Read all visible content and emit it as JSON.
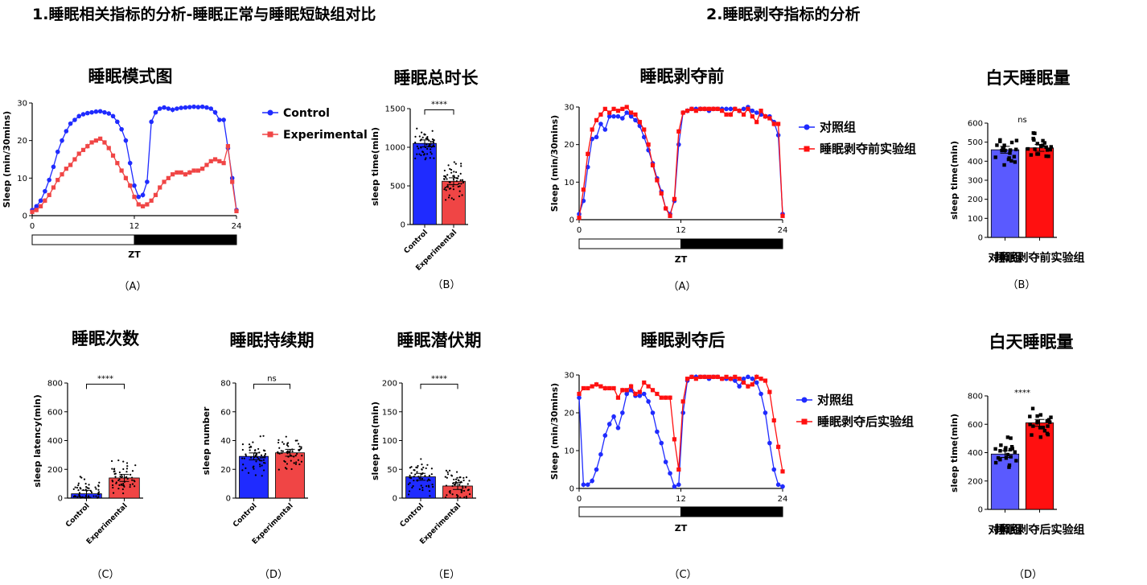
{
  "sections": {
    "left": "1.睡眠相关指标的分析-睡眠正常与睡眠短缺组对比",
    "right": "2.睡眠剥夺指标的分析"
  },
  "colors": {
    "blue": "#1f2bff",
    "red_light": "#f04545",
    "red": "#ff1010",
    "blue_light": "#5a5aff",
    "black": "#000000"
  },
  "chart_data": [
    {
      "id": "A1",
      "type": "line",
      "title": "睡眠模式图",
      "panel_label": "（A）",
      "ylabel": "Sleep (min/30mins)",
      "xlabel": "ZT",
      "xlim": [
        0,
        24
      ],
      "ylim": [
        0,
        30
      ],
      "xticks": [
        0,
        12,
        24
      ],
      "yticks": [
        0,
        10,
        20,
        30
      ],
      "light_dark_bar": true,
      "series": [
        {
          "name": "Control",
          "color": "#1f2bff",
          "marker": "circle",
          "values": [
            1.5,
            2.5,
            4,
            6.5,
            9.5,
            13,
            17,
            20,
            22.5,
            24.5,
            25.5,
            26.5,
            27,
            27.3,
            27.5,
            27.7,
            27.8,
            27.5,
            27.2,
            26.5,
            25,
            23,
            20,
            14,
            8,
            5,
            5.5,
            9,
            25,
            27.5,
            28.5,
            28.8,
            28.5,
            28.2,
            28.5,
            28.7,
            28.8,
            28.9,
            29,
            28.9,
            29,
            28.8,
            28.5,
            27.5,
            25.5,
            25.5,
            18,
            10,
            1.5
          ]
        },
        {
          "name": "Experimental",
          "color": "#f04545",
          "marker": "square",
          "values": [
            1,
            1.5,
            2.5,
            4,
            5.5,
            7.5,
            9.5,
            11,
            12.5,
            13.5,
            15,
            16.5,
            17.5,
            18.5,
            19.5,
            20,
            20.5,
            19.5,
            18,
            16,
            14,
            12,
            10,
            8,
            5,
            3,
            2.5,
            3,
            4,
            5.5,
            7.5,
            9,
            10,
            11,
            11.5,
            11.5,
            11,
            11.5,
            12,
            12,
            12.5,
            13.5,
            14.5,
            15,
            14.5,
            14,
            18.5,
            9,
            1.2
          ]
        }
      ]
    },
    {
      "id": "B1",
      "type": "bar",
      "title": "睡眠总时长",
      "panel_label": "（B）",
      "ylabel": "sleep time(min)",
      "categories": [
        "Control",
        "Experimental"
      ],
      "values": [
        1050,
        560
      ],
      "ylim": [
        0,
        1500
      ],
      "yticks": [
        0,
        500,
        1000,
        1500
      ],
      "bar_colors": [
        "#1f2bff",
        "#f04545"
      ],
      "significance": "****"
    },
    {
      "id": "C1",
      "type": "bar",
      "title": "睡眠次数",
      "panel_label": "（C）",
      "ylabel": "sleep latency(min)",
      "categories": [
        "Control",
        "Experimental"
      ],
      "values": [
        30,
        140
      ],
      "ylim": [
        0,
        800
      ],
      "yticks": [
        0,
        200,
        400,
        600,
        800
      ],
      "bar_colors": [
        "#1f2bff",
        "#f04545"
      ],
      "significance": "****"
    },
    {
      "id": "D1",
      "type": "bar",
      "title": "睡眠持续期",
      "panel_label": "（D）",
      "ylabel": "sleep number",
      "categories": [
        "Control",
        "Experimental"
      ],
      "values": [
        29,
        31.5
      ],
      "ylim": [
        0,
        80
      ],
      "yticks": [
        0,
        20,
        40,
        60,
        80
      ],
      "bar_colors": [
        "#1f2bff",
        "#f04545"
      ],
      "significance": "ns"
    },
    {
      "id": "E1",
      "type": "bar",
      "title": "睡眠潜伏期",
      "panel_label": "（E）",
      "ylabel": "sleep time(min)",
      "categories": [
        "Control",
        "Experimental"
      ],
      "values": [
        37,
        21
      ],
      "ylim": [
        0,
        200
      ],
      "yticks": [
        0,
        50,
        100,
        150,
        200
      ],
      "bar_colors": [
        "#1f2bff",
        "#f04545"
      ],
      "significance": "****"
    },
    {
      "id": "A2",
      "type": "line",
      "title": "睡眠剥夺前",
      "panel_label": "（A）",
      "ylabel": "Sleep (min/30mins)",
      "xlabel": "ZT",
      "xlim": [
        0,
        24
      ],
      "ylim": [
        0,
        30
      ],
      "xticks": [
        0,
        12,
        24
      ],
      "yticks": [
        0,
        10,
        20,
        30
      ],
      "light_dark_bar": true,
      "series": [
        {
          "name": "对照组",
          "color": "#1f2bff",
          "marker": "circle",
          "values": [
            1.5,
            5,
            14,
            21.5,
            22,
            25.5,
            24,
            27.5,
            27.5,
            27.5,
            27,
            28.5,
            27.5,
            26.5,
            25,
            22,
            18.5,
            15,
            11,
            7.5,
            3,
            1.5,
            5,
            20,
            28.5,
            29,
            29.5,
            29.5,
            29.5,
            29.5,
            29,
            29.5,
            29.5,
            29.5,
            29.5,
            29.5,
            29.5,
            29,
            29.5,
            30,
            29,
            28.5,
            28,
            27.5,
            27.5,
            26,
            22.5,
            1.5
          ]
        },
        {
          "name": "睡眠剥夺前实验组",
          "color": "#ff1010",
          "marker": "square",
          "values": [
            0.5,
            8,
            17.5,
            24,
            26.5,
            28,
            29.5,
            28.5,
            29.5,
            29,
            29.5,
            30,
            28.5,
            28,
            26,
            24,
            20,
            14.5,
            10.5,
            7,
            3,
            1,
            5.5,
            23.5,
            28.5,
            29,
            29.5,
            29,
            29.5,
            29.5,
            29.5,
            29.5,
            29.5,
            29,
            28,
            28,
            29.5,
            29,
            28,
            29.5,
            27.5,
            26,
            29,
            27.5,
            27,
            25.5,
            25.5,
            1
          ]
        }
      ]
    },
    {
      "id": "B2",
      "type": "bar",
      "title": "白天睡眠量",
      "panel_label": "（B）",
      "ylabel": "sleep time(min)",
      "categories": [
        "对照组",
        "睡眠剥夺前实验组"
      ],
      "values": [
        460,
        470
      ],
      "ylim": [
        0,
        600
      ],
      "yticks": [
        0,
        100,
        200,
        300,
        400,
        500,
        600
      ],
      "bar_colors": [
        "#5a5aff",
        "#ff1010"
      ],
      "significance": "ns"
    },
    {
      "id": "C2",
      "type": "line",
      "title": "睡眠剥夺后",
      "panel_label": "（C）",
      "ylabel": "Sleep (min/30mins)",
      "xlabel": "ZT",
      "xlim": [
        0,
        24
      ],
      "ylim": [
        0,
        30
      ],
      "xticks": [
        0,
        12,
        24
      ],
      "yticks": [
        0,
        10,
        20,
        30
      ],
      "light_dark_bar": true,
      "series": [
        {
          "name": "对照组",
          "color": "#1f2bff",
          "marker": "circle",
          "values": [
            24,
            1,
            1,
            2,
            5,
            9,
            14,
            17,
            19,
            16,
            20,
            25,
            26,
            24.5,
            24.5,
            25,
            23,
            20,
            15,
            12,
            7,
            4,
            0.5,
            1,
            20,
            28.5,
            29.5,
            29.5,
            29.5,
            29.5,
            29,
            29.5,
            29.5,
            29,
            29,
            29,
            28.5,
            27,
            29,
            29.5,
            29,
            28,
            25,
            20,
            12,
            5,
            1,
            0.5
          ]
        },
        {
          "name": "睡眠剥夺后实验组",
          "color": "#ff1010",
          "marker": "square",
          "values": [
            25,
            26.5,
            26.5,
            27,
            27.5,
            27,
            26.5,
            26.5,
            26.5,
            24,
            26,
            26,
            27,
            25,
            25.5,
            28,
            27,
            26,
            25,
            24,
            24,
            24,
            13,
            5,
            23,
            29,
            29.5,
            29,
            29.5,
            29.5,
            29.5,
            29.5,
            29.5,
            29,
            29.5,
            29,
            29.5,
            29,
            28,
            27,
            27.5,
            29.5,
            29,
            28.5,
            25.5,
            18,
            11,
            4.5
          ]
        }
      ]
    },
    {
      "id": "D2",
      "type": "bar",
      "title": "白天睡眠量",
      "panel_label": "（D）",
      "ylabel": "sleep time(min)",
      "categories": [
        "对照组",
        "睡眠剥夺后实验组"
      ],
      "values": [
        390,
        610
      ],
      "ylim": [
        0,
        800
      ],
      "yticks": [
        0,
        200,
        400,
        600,
        800
      ],
      "bar_colors": [
        "#5a5aff",
        "#ff1010"
      ],
      "significance": "****"
    }
  ]
}
